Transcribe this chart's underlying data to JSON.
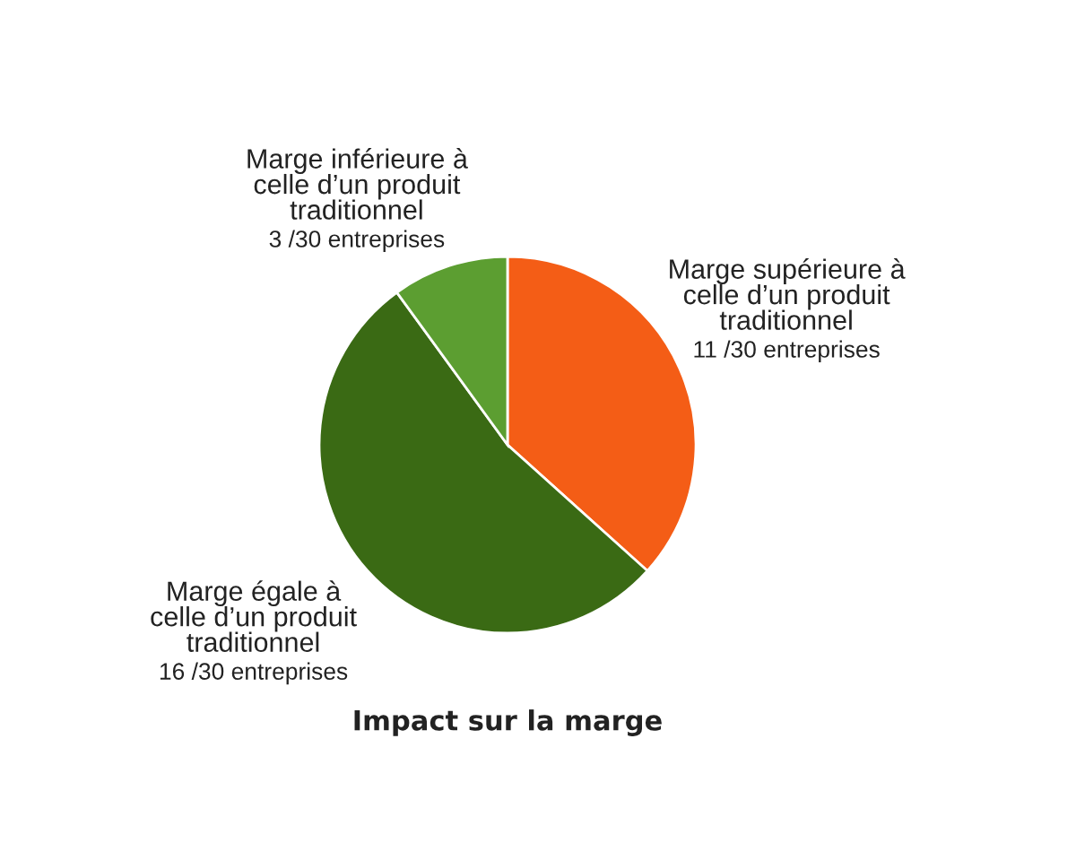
{
  "chart_data": {
    "type": "pie",
    "title": "Impact sur la marge",
    "categories": [
      "Marge supérieure à\ncelle d’un produit\ntraditionnel",
      "Marge égale à\ncelle d’un produit\ntraditionnel",
      "Marge inférieure à\ncelle d’un produit\ntraditionnel"
    ],
    "values": [
      11,
      16,
      3
    ],
    "value_labels": [
      "11 /30 entreprises",
      "16 /30 entreprises",
      "3 /30 entreprises"
    ],
    "colors": [
      "#f45d16",
      "#3a6a14",
      "#5c9e31"
    ],
    "legend": false
  }
}
